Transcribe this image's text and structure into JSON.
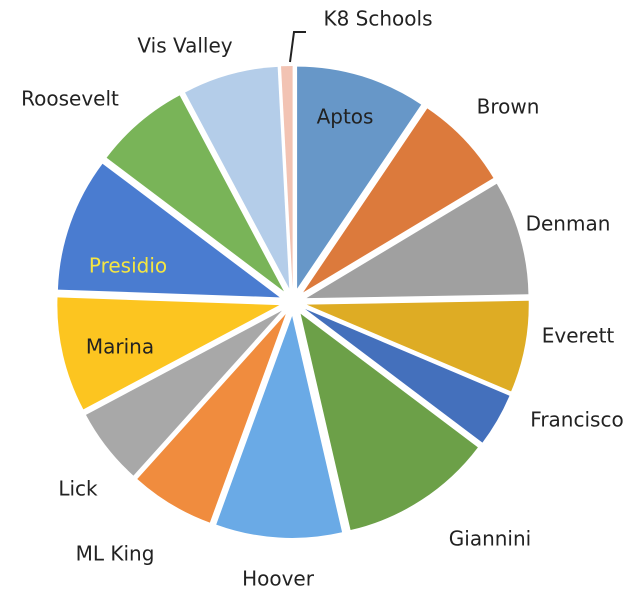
{
  "chart_data": {
    "type": "pie",
    "categories": [
      "Aptos",
      "Brown",
      "Denman",
      "Everett",
      "Francisco",
      "Giannini",
      "Hoover",
      "ML King",
      "Lick",
      "Marina",
      "Presidio",
      "Roosevelt",
      "Vis Valley",
      "K8 Schools"
    ],
    "values": [
      34,
      25,
      30,
      24,
      14,
      40,
      33,
      22,
      20,
      30,
      35,
      25,
      25,
      3
    ],
    "colors": [
      "#6797c8",
      "#dc7a3c",
      "#a0a0a0",
      "#deac24",
      "#4470bc",
      "#6ca048",
      "#6aaae6",
      "#f08c3e",
      "#a8a8a8",
      "#fcc520",
      "#4a7cd0",
      "#79b458",
      "#b4cde9",
      "#f2c3b3"
    ]
  }
}
